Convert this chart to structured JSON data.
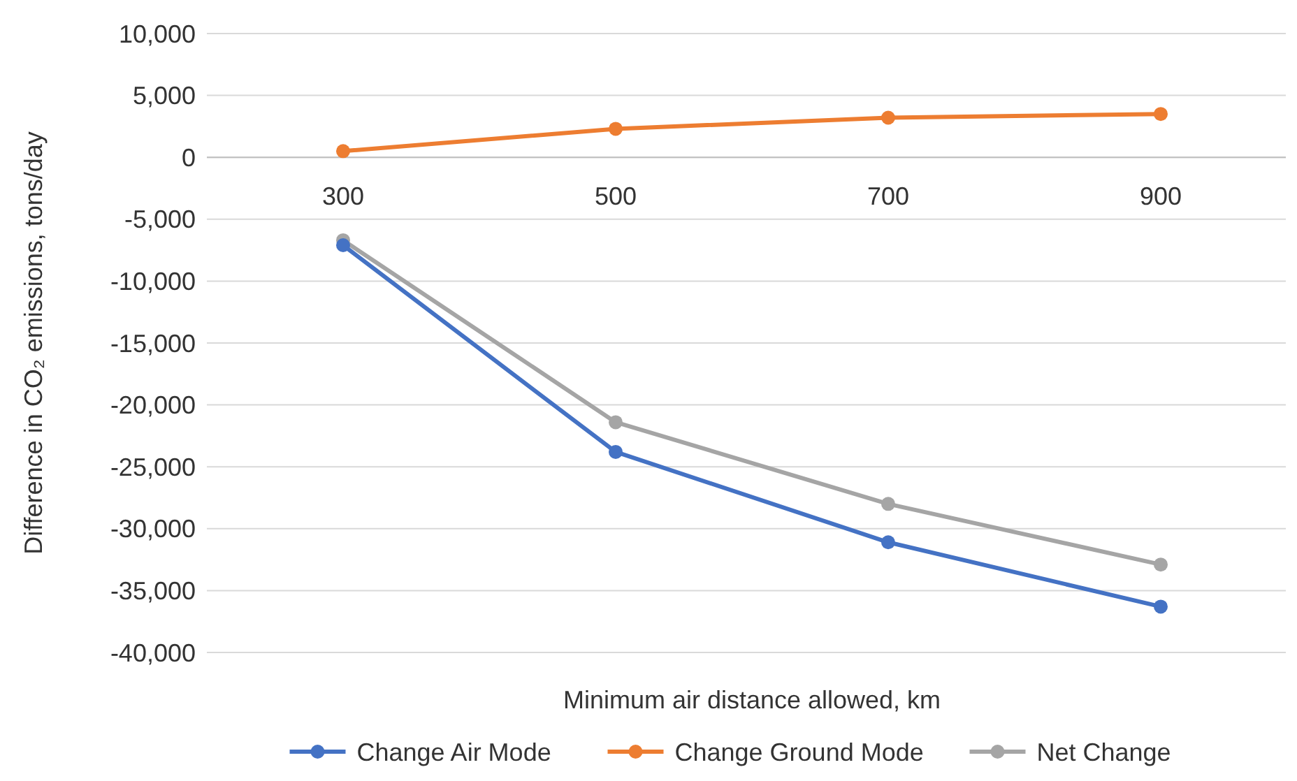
{
  "chart_data": {
    "type": "line",
    "xlabel": "Minimum air distance allowed, km",
    "ylabel": "Difference in CO₂ emissions, tons/day",
    "categories": [
      "300",
      "500",
      "700",
      "900"
    ],
    "series": [
      {
        "name": "Change Air Mode",
        "color": "#4472c4",
        "values": [
          -7100,
          -23800,
          -31100,
          -36300
        ]
      },
      {
        "name": "Change Ground Mode",
        "color": "#ed7d31",
        "values": [
          500,
          2300,
          3200,
          3500
        ]
      },
      {
        "name": "Net Change",
        "color": "#a5a5a5",
        "values": [
          -6700,
          -21400,
          -28000,
          -32900
        ]
      }
    ],
    "ylim": [
      -40000,
      10000
    ],
    "yticks": [
      {
        "value": -40000,
        "label": "-40,000"
      },
      {
        "value": -35000,
        "label": "-35,000"
      },
      {
        "value": -30000,
        "label": "-30,000"
      },
      {
        "value": -25000,
        "label": "-25,000"
      },
      {
        "value": -20000,
        "label": "-20,000"
      },
      {
        "value": -15000,
        "label": "-15,000"
      },
      {
        "value": -10000,
        "label": "-10,000"
      },
      {
        "value": -5000,
        "label": "-5,000"
      },
      {
        "value": 0,
        "label": "0"
      },
      {
        "value": 5000,
        "label": "5,000"
      },
      {
        "value": 10000,
        "label": "10,000"
      }
    ],
    "grid": "y",
    "legend": "bottom",
    "marker": "circle",
    "line_style": "solid"
  }
}
